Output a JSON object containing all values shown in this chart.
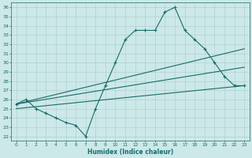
{
  "xlabel": "Humidex (Indice chaleur)",
  "xlim": [
    -0.5,
    23.5
  ],
  "ylim": [
    21.5,
    36.5
  ],
  "xticks": [
    0,
    1,
    2,
    3,
    4,
    5,
    6,
    7,
    8,
    9,
    10,
    11,
    12,
    13,
    14,
    15,
    16,
    17,
    18,
    19,
    20,
    21,
    22,
    23
  ],
  "yticks": [
    22,
    23,
    24,
    25,
    26,
    27,
    28,
    29,
    30,
    31,
    32,
    33,
    34,
    35,
    36
  ],
  "bg_color": "#cce8e8",
  "grid_color": "#aacccc",
  "line_color": "#1a6b6b",
  "main_x": [
    0,
    1,
    2,
    3,
    4,
    5,
    6,
    7,
    8,
    9,
    10,
    11,
    12,
    13,
    14,
    15,
    16,
    17,
    18,
    19,
    20,
    21,
    22,
    23
  ],
  "main_y": [
    25.5,
    26.0,
    25.0,
    24.5,
    24.0,
    23.5,
    23.2,
    22.0,
    25.0,
    27.5,
    30.0,
    32.5,
    33.5,
    33.5,
    33.5,
    35.5,
    36.0,
    33.5,
    32.5,
    31.5,
    30.0,
    28.5,
    27.5,
    27.5
  ],
  "trend1_x": [
    0,
    23
  ],
  "trend1_y": [
    25.5,
    31.5
  ],
  "trend2_x": [
    0,
    23
  ],
  "trend2_y": [
    25.5,
    29.5
  ],
  "trend3_x": [
    0,
    23
  ],
  "trend3_y": [
    25.0,
    27.5
  ]
}
